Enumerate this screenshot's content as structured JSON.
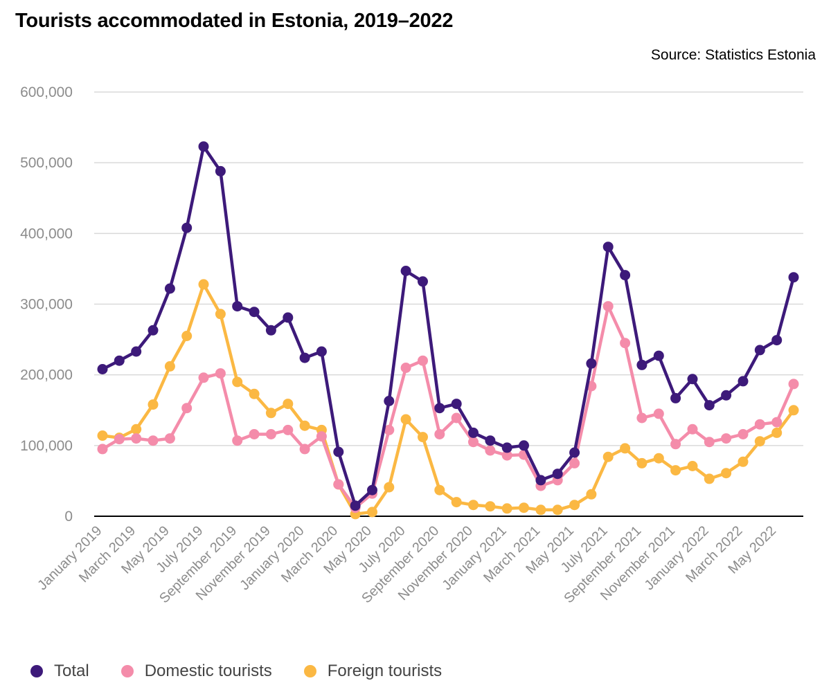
{
  "title": "Tourists accommodated in Estonia, 2019–2022",
  "source": "Source: Statistics Estonia",
  "chart_data": {
    "type": "line",
    "title": "Tourists accommodated in Estonia, 2019–2022",
    "xlabel": "",
    "ylabel": "",
    "ylim": [
      0,
      600000
    ],
    "yticks": [
      "0",
      "100,000",
      "200,000",
      "300,000",
      "400,000",
      "500,000",
      "600,000"
    ],
    "grid": true,
    "legend_position": "bottom-left",
    "x": [
      "January 2019",
      "February 2019",
      "March 2019",
      "April 2019",
      "May 2019",
      "June 2019",
      "July 2019",
      "August 2019",
      "September 2019",
      "October 2019",
      "November 2019",
      "December 2019",
      "January 2020",
      "February 2020",
      "March 2020",
      "April 2020",
      "May 2020",
      "June 2020",
      "July 2020",
      "August 2020",
      "September 2020",
      "October 2020",
      "November 2020",
      "December 2020",
      "January 2021",
      "February 2021",
      "March 2021",
      "April 2021",
      "May 2021",
      "June 2021",
      "July 2021",
      "August 2021",
      "September 2021",
      "October 2021",
      "November 2021",
      "December 2021",
      "January 2022",
      "February 2022",
      "March 2022",
      "April 2022",
      "May 2022",
      "June 2022"
    ],
    "x_tick_labels": [
      "January 2019",
      "March 2019",
      "May 2019",
      "July 2019",
      "September 2019",
      "November 2019",
      "January 2020",
      "March 2020",
      "May 2020",
      "July 2020",
      "September 2020",
      "November 2020",
      "January 2021",
      "March 2021",
      "May 2021",
      "July 2021",
      "September 2021",
      "November 2021",
      "January 2022",
      "March 2022",
      "May 2022"
    ],
    "series": [
      {
        "name": "Total",
        "color": "#3d1a7a",
        "values": [
          208000,
          220000,
          233000,
          263000,
          322000,
          408000,
          523000,
          488000,
          297000,
          289000,
          263000,
          281000,
          224000,
          233000,
          91000,
          15000,
          37000,
          163000,
          347000,
          332000,
          153000,
          159000,
          118000,
          107000,
          97000,
          100000,
          51000,
          60000,
          90000,
          216000,
          381000,
          341000,
          214000,
          227000,
          167000,
          194000,
          157000,
          171000,
          191000,
          235000,
          249000,
          338000
        ]
      },
      {
        "name": "Domestic tourists",
        "color": "#f48caa",
        "values": [
          95000,
          109000,
          110000,
          107000,
          110000,
          153000,
          196000,
          202000,
          107000,
          116000,
          116000,
          122000,
          95000,
          113000,
          45000,
          12000,
          32000,
          122000,
          210000,
          220000,
          116000,
          139000,
          105000,
          93000,
          86000,
          87000,
          43000,
          51000,
          75000,
          184000,
          297000,
          245000,
          139000,
          145000,
          102000,
          123000,
          105000,
          110000,
          116000,
          130000,
          133000,
          187000
        ]
      },
      {
        "name": "Foreign tourists",
        "color": "#fbb843",
        "values": [
          114000,
          111000,
          123000,
          158000,
          212000,
          255000,
          328000,
          286000,
          190000,
          173000,
          146000,
          159000,
          128000,
          122000,
          45000,
          3000,
          6000,
          41000,
          137000,
          112000,
          37000,
          20000,
          16000,
          14000,
          11000,
          12000,
          9000,
          9000,
          16000,
          31000,
          84000,
          96000,
          75000,
          82000,
          65000,
          71000,
          53000,
          61000,
          77000,
          106000,
          118000,
          150000
        ]
      }
    ]
  }
}
